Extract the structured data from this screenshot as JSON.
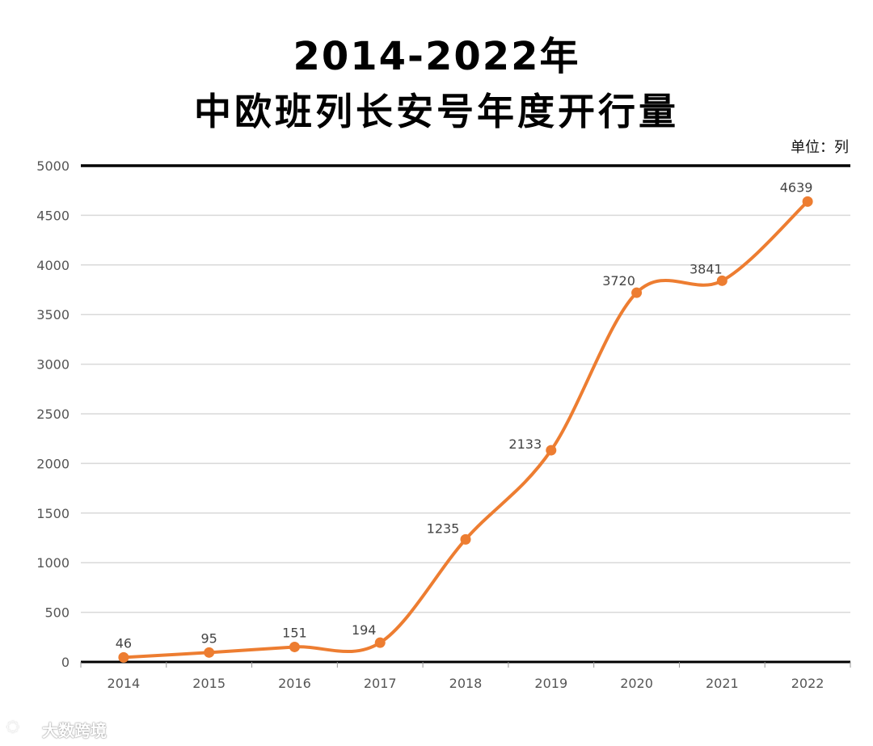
{
  "title": {
    "line1": "2014-2022年",
    "line2": "中欧班列长安号年度开行量"
  },
  "unit_label": "单位：列",
  "watermark": "大数跨境",
  "colors": {
    "line": "#ED7D31",
    "grid": "#d9d9d9",
    "top_border": "#000000",
    "axis": "#000000"
  },
  "chart_data": {
    "type": "line",
    "title": "2014-2022年中欧班列长安号年度开行量",
    "xlabel": "",
    "ylabel": "单位：列",
    "categories": [
      "2014",
      "2015",
      "2016",
      "2017",
      "2018",
      "2019",
      "2020",
      "2021",
      "2022"
    ],
    "series": [
      {
        "name": "开行量",
        "values": [
          46,
          95,
          151,
          194,
          1235,
          2133,
          3720,
          3841,
          4639
        ]
      }
    ],
    "ylim": [
      0,
      5000
    ],
    "yticks": [
      0,
      500,
      1000,
      1500,
      2000,
      2500,
      3000,
      3500,
      4000,
      4500,
      5000
    ],
    "grid": true,
    "smooth": true
  }
}
